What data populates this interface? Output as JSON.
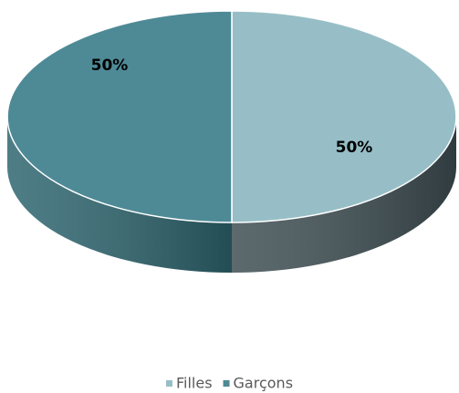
{
  "chart_data": {
    "type": "pie",
    "categories": [
      "Filles",
      "Garçons"
    ],
    "values": [
      50,
      50
    ],
    "value_labels": [
      "50%",
      "50%"
    ],
    "colors": [
      "#97bec6",
      "#4e8a96"
    ],
    "side_colors": [
      "#3f4f54",
      "#2f6670"
    ],
    "legend": "bottom"
  }
}
